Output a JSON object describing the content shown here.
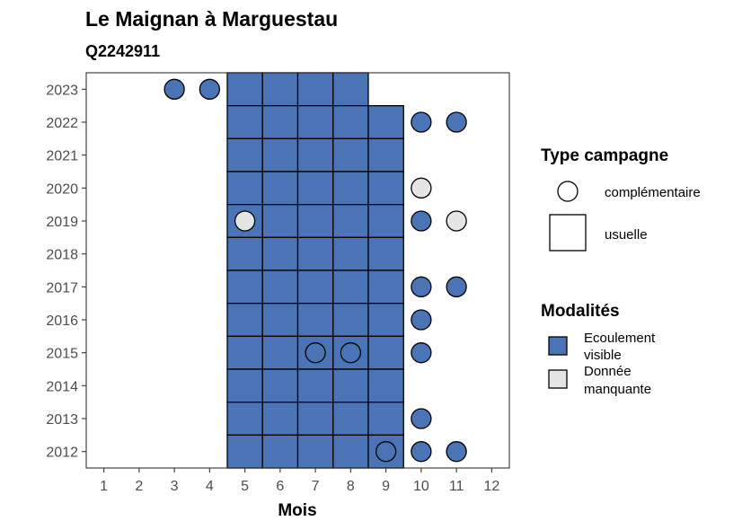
{
  "title": "Le Maignan à Marguestau",
  "subtitle": "Q2242911",
  "chart_data": {
    "type": "heatmap",
    "xlabel": "Mois",
    "ylabel": "",
    "x_ticks": [
      "1",
      "2",
      "3",
      "4",
      "5",
      "6",
      "7",
      "8",
      "9",
      "10",
      "11",
      "12"
    ],
    "y_ticks": [
      "2023",
      "2022",
      "2021",
      "2020",
      "2019",
      "2018",
      "2017",
      "2016",
      "2015",
      "2014",
      "2013",
      "2012"
    ],
    "xlim": [
      0.5,
      12.5
    ],
    "ylim": [
      2011.5,
      2023.5
    ],
    "colors": {
      "Ecoulement visible": "#4a74b5",
      "Donnée manquante": "#e5e5e5"
    },
    "usuelle": [
      {
        "year": 2023,
        "months": [
          5,
          6,
          7,
          8
        ]
      },
      {
        "year": 2022,
        "months": [
          5,
          6,
          7,
          8,
          9
        ]
      },
      {
        "year": 2021,
        "months": [
          5,
          6,
          7,
          8,
          9
        ]
      },
      {
        "year": 2020,
        "months": [
          5,
          6,
          7,
          8,
          9
        ]
      },
      {
        "year": 2019,
        "months": [
          5,
          6,
          7,
          8,
          9
        ]
      },
      {
        "year": 2018,
        "months": [
          5,
          6,
          7,
          8,
          9
        ]
      },
      {
        "year": 2017,
        "months": [
          5,
          6,
          7,
          8,
          9
        ]
      },
      {
        "year": 2016,
        "months": [
          5,
          6,
          7,
          8,
          9
        ]
      },
      {
        "year": 2015,
        "months": [
          5,
          6,
          7,
          8,
          9
        ]
      },
      {
        "year": 2014,
        "months": [
          5,
          6,
          7,
          8,
          9
        ]
      },
      {
        "year": 2013,
        "months": [
          5,
          6,
          7,
          8,
          9
        ]
      },
      {
        "year": 2012,
        "months": [
          5,
          6,
          7,
          8,
          9
        ]
      }
    ],
    "usuelle_modalite": "Ecoulement visible",
    "complementaire": [
      {
        "year": 2023,
        "month": 3,
        "modalite": "Ecoulement visible"
      },
      {
        "year": 2023,
        "month": 4,
        "modalite": "Ecoulement visible"
      },
      {
        "year": 2022,
        "month": 10,
        "modalite": "Ecoulement visible"
      },
      {
        "year": 2022,
        "month": 11,
        "modalite": "Ecoulement visible"
      },
      {
        "year": 2020,
        "month": 10,
        "modalite": "Donnée manquante"
      },
      {
        "year": 2019,
        "month": 5,
        "modalite": "Donnée manquante"
      },
      {
        "year": 2019,
        "month": 10,
        "modalite": "Ecoulement visible"
      },
      {
        "year": 2019,
        "month": 11,
        "modalite": "Donnée manquante"
      },
      {
        "year": 2017,
        "month": 10,
        "modalite": "Ecoulement visible"
      },
      {
        "year": 2017,
        "month": 11,
        "modalite": "Ecoulement visible"
      },
      {
        "year": 2016,
        "month": 10,
        "modalite": "Ecoulement visible"
      },
      {
        "year": 2015,
        "month": 7,
        "modalite": "Ecoulement visible"
      },
      {
        "year": 2015,
        "month": 8,
        "modalite": "Ecoulement visible"
      },
      {
        "year": 2015,
        "month": 10,
        "modalite": "Ecoulement visible"
      },
      {
        "year": 2013,
        "month": 10,
        "modalite": "Ecoulement visible"
      },
      {
        "year": 2012,
        "month": 9,
        "modalite": "Ecoulement visible"
      },
      {
        "year": 2012,
        "month": 10,
        "modalite": "Ecoulement visible"
      },
      {
        "year": 2012,
        "month": 11,
        "modalite": "Ecoulement visible"
      }
    ],
    "legend": {
      "position": "right",
      "type_campagne": {
        "title": "Type campagne",
        "items": [
          "complémentaire",
          "usuelle"
        ]
      },
      "modalites": {
        "title": "Modalités",
        "items": [
          {
            "label_line1": "Ecoulement",
            "label_line2": "visible",
            "key": "Ecoulement visible"
          },
          {
            "label_line1": "Donnée",
            "label_line2": "manquante",
            "key": "Donnée manquante"
          }
        ]
      }
    }
  }
}
